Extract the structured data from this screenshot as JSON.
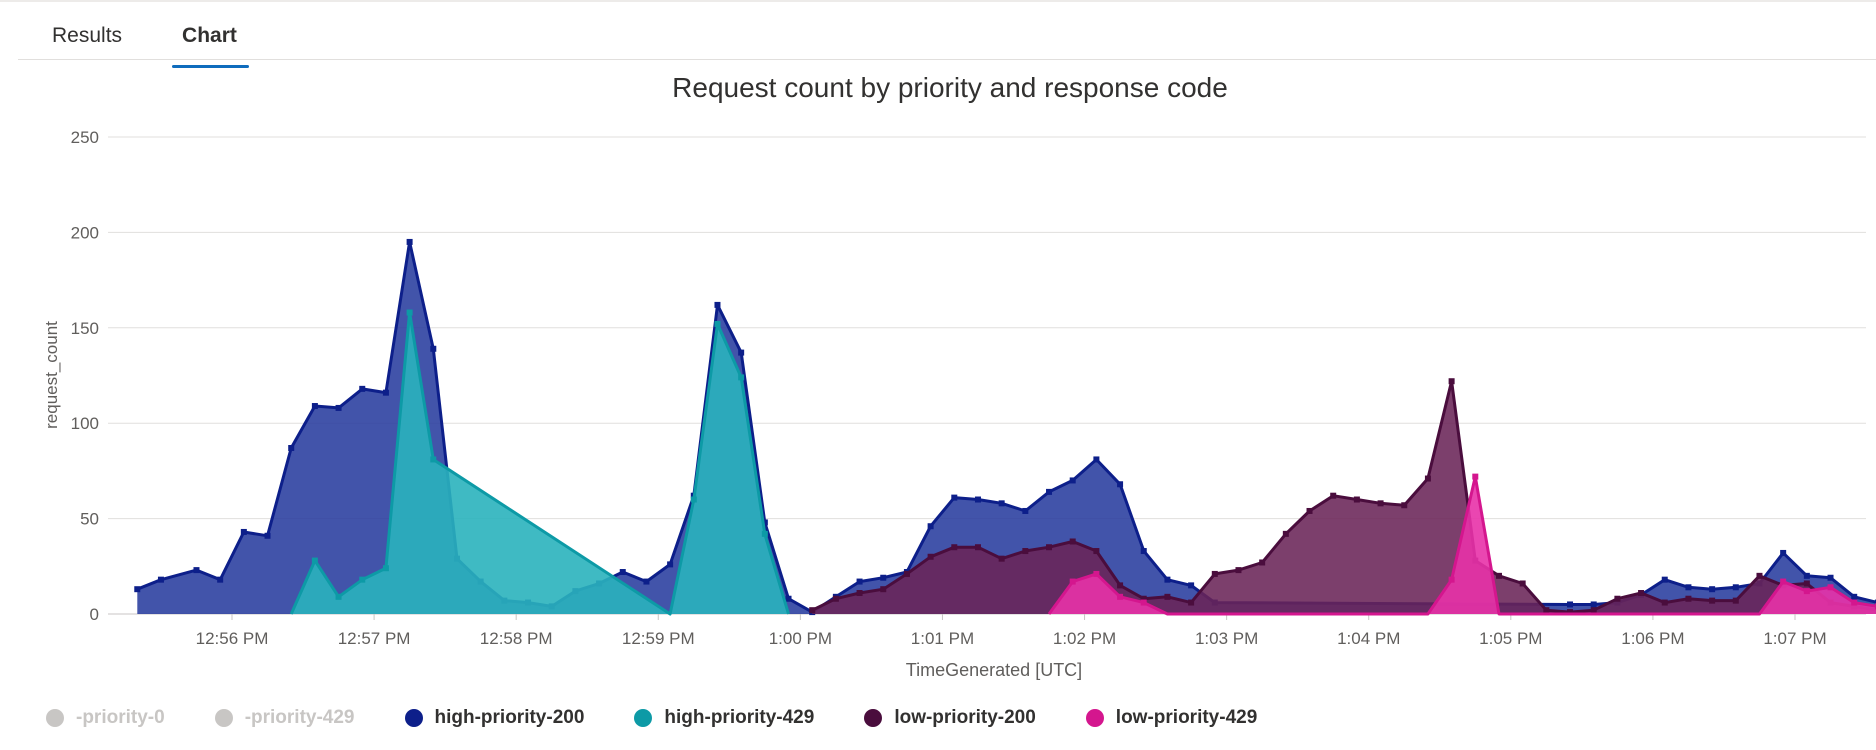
{
  "tabs": [
    {
      "label": "Results",
      "active": false
    },
    {
      "label": "Chart",
      "active": true
    }
  ],
  "chart_data": {
    "type": "area",
    "title": "Request count by priority and response code",
    "xlabel": "TimeGenerated [UTC]",
    "ylabel": "request_count",
    "ylim": [
      0,
      250
    ],
    "yticks": [
      0,
      50,
      100,
      150,
      200,
      250
    ],
    "xlim": [
      "12:55:20",
      "1:07:35"
    ],
    "xticks": [
      "12:56 PM",
      "12:57 PM",
      "12:58 PM",
      "12:59 PM",
      "1:00 PM",
      "1:01 PM",
      "1:02 PM",
      "1:03 PM",
      "1:04 PM",
      "1:05 PM",
      "1:06 PM",
      "1:07 PM"
    ],
    "grid": true,
    "legend_position": "bottom-left",
    "series": [
      {
        "name": "-priority-0",
        "color": "#c8c6c4",
        "hidden": true,
        "x": [],
        "y": []
      },
      {
        "name": "-priority-429",
        "color": "#c8c6c4",
        "hidden": true,
        "x": [],
        "y": []
      },
      {
        "name": "high-priority-200",
        "color": "#0d1f8a",
        "fill": "#283c9e",
        "hidden": false,
        "x": [
          "12:55:20",
          "12:55:30",
          "12:55:45",
          "12:55:55",
          "12:56:05",
          "12:56:15",
          "12:56:25",
          "12:56:35",
          "12:56:45",
          "12:56:55",
          "12:57:05",
          "12:57:15",
          "12:57:25",
          "12:57:35",
          "12:57:45",
          "12:57:55",
          "12:58:05",
          "12:58:15",
          "12:58:25",
          "12:58:35",
          "12:58:45",
          "12:58:55",
          "12:59:05",
          "12:59:15",
          "12:59:25",
          "12:59:35",
          "12:59:45",
          "12:59:55",
          "1:00:05",
          "1:00:15",
          "1:00:25",
          "1:00:35",
          "1:00:45",
          "1:00:55",
          "1:01:05",
          "1:01:15",
          "1:01:25",
          "1:01:35",
          "1:01:45",
          "1:01:55",
          "1:02:05",
          "1:02:15",
          "1:02:25",
          "1:02:35",
          "1:02:45",
          "1:02:55",
          "1:05:25",
          "1:05:35",
          "1:05:45",
          "1:05:55",
          "1:06:05",
          "1:06:15",
          "1:06:25",
          "1:06:35",
          "1:06:45",
          "1:06:55",
          "1:07:05",
          "1:07:15",
          "1:07:25",
          "1:07:35"
        ],
        "y": [
          13,
          18,
          23,
          18,
          43,
          41,
          87,
          109,
          108,
          118,
          116,
          195,
          139,
          29,
          17,
          7,
          6,
          4,
          12,
          16,
          22,
          17,
          26,
          62,
          162,
          137,
          48,
          8,
          1,
          9,
          17,
          19,
          22,
          46,
          61,
          60,
          58,
          54,
          64,
          70,
          81,
          68,
          33,
          18,
          15,
          6,
          5,
          5,
          6,
          10,
          18,
          14,
          13,
          14,
          16,
          32,
          20,
          19,
          9,
          6
        ]
      },
      {
        "name": "high-priority-429",
        "color": "#0d9aa6",
        "fill": "#2ab3bd",
        "hidden": false,
        "x": [
          "12:56:25",
          "12:56:35",
          "12:56:45",
          "12:56:55",
          "12:57:05",
          "12:57:15",
          "12:57:25",
          "12:59:05",
          "12:59:15",
          "12:59:25",
          "12:59:35",
          "12:59:45",
          "12:59:55"
        ],
        "y": [
          0,
          28,
          9,
          18,
          24,
          158,
          81,
          0,
          60,
          152,
          124,
          42,
          0
        ]
      },
      {
        "name": "low-priority-200",
        "color": "#4a0d3d",
        "fill": "#6a2458",
        "hidden": false,
        "x": [
          "1:00:05",
          "1:00:15",
          "1:00:25",
          "1:00:35",
          "1:00:45",
          "1:00:55",
          "1:01:05",
          "1:01:15",
          "1:01:25",
          "1:01:35",
          "1:01:45",
          "1:01:55",
          "1:02:05",
          "1:02:15",
          "1:02:25",
          "1:02:35",
          "1:02:45",
          "1:02:55",
          "1:03:05",
          "1:03:15",
          "1:03:25",
          "1:03:35",
          "1:03:45",
          "1:03:55",
          "1:04:05",
          "1:04:15",
          "1:04:25",
          "1:04:35",
          "1:04:45",
          "1:04:55",
          "1:05:05",
          "1:05:15",
          "1:05:25",
          "1:05:35",
          "1:05:45",
          "1:05:55",
          "1:06:05",
          "1:06:15",
          "1:06:25",
          "1:06:35",
          "1:06:45",
          "1:06:55",
          "1:07:05",
          "1:07:15",
          "1:07:25",
          "1:07:35"
        ],
        "y": [
          2,
          8,
          11,
          13,
          21,
          30,
          35,
          35,
          29,
          33,
          35,
          38,
          33,
          15,
          8,
          9,
          6,
          21,
          23,
          27,
          42,
          54,
          62,
          60,
          58,
          57,
          71,
          122,
          28,
          20,
          16,
          2,
          1,
          2,
          8,
          11,
          6,
          8,
          7,
          7,
          20,
          15,
          16,
          6,
          4,
          2
        ]
      },
      {
        "name": "low-priority-429",
        "color": "#d4168e",
        "fill": "#e832a8",
        "hidden": false,
        "x": [
          "1:01:45",
          "1:01:55",
          "1:02:05",
          "1:02:15",
          "1:02:25",
          "1:02:35",
          "1:04:25",
          "1:04:35",
          "1:04:45",
          "1:04:55",
          "1:06:45",
          "1:06:55",
          "1:07:05",
          "1:07:15",
          "1:07:25",
          "1:07:35"
        ],
        "y": [
          0,
          17,
          21,
          9,
          6,
          0,
          0,
          18,
          72,
          0,
          0,
          17,
          12,
          14,
          6,
          4
        ]
      }
    ]
  }
}
